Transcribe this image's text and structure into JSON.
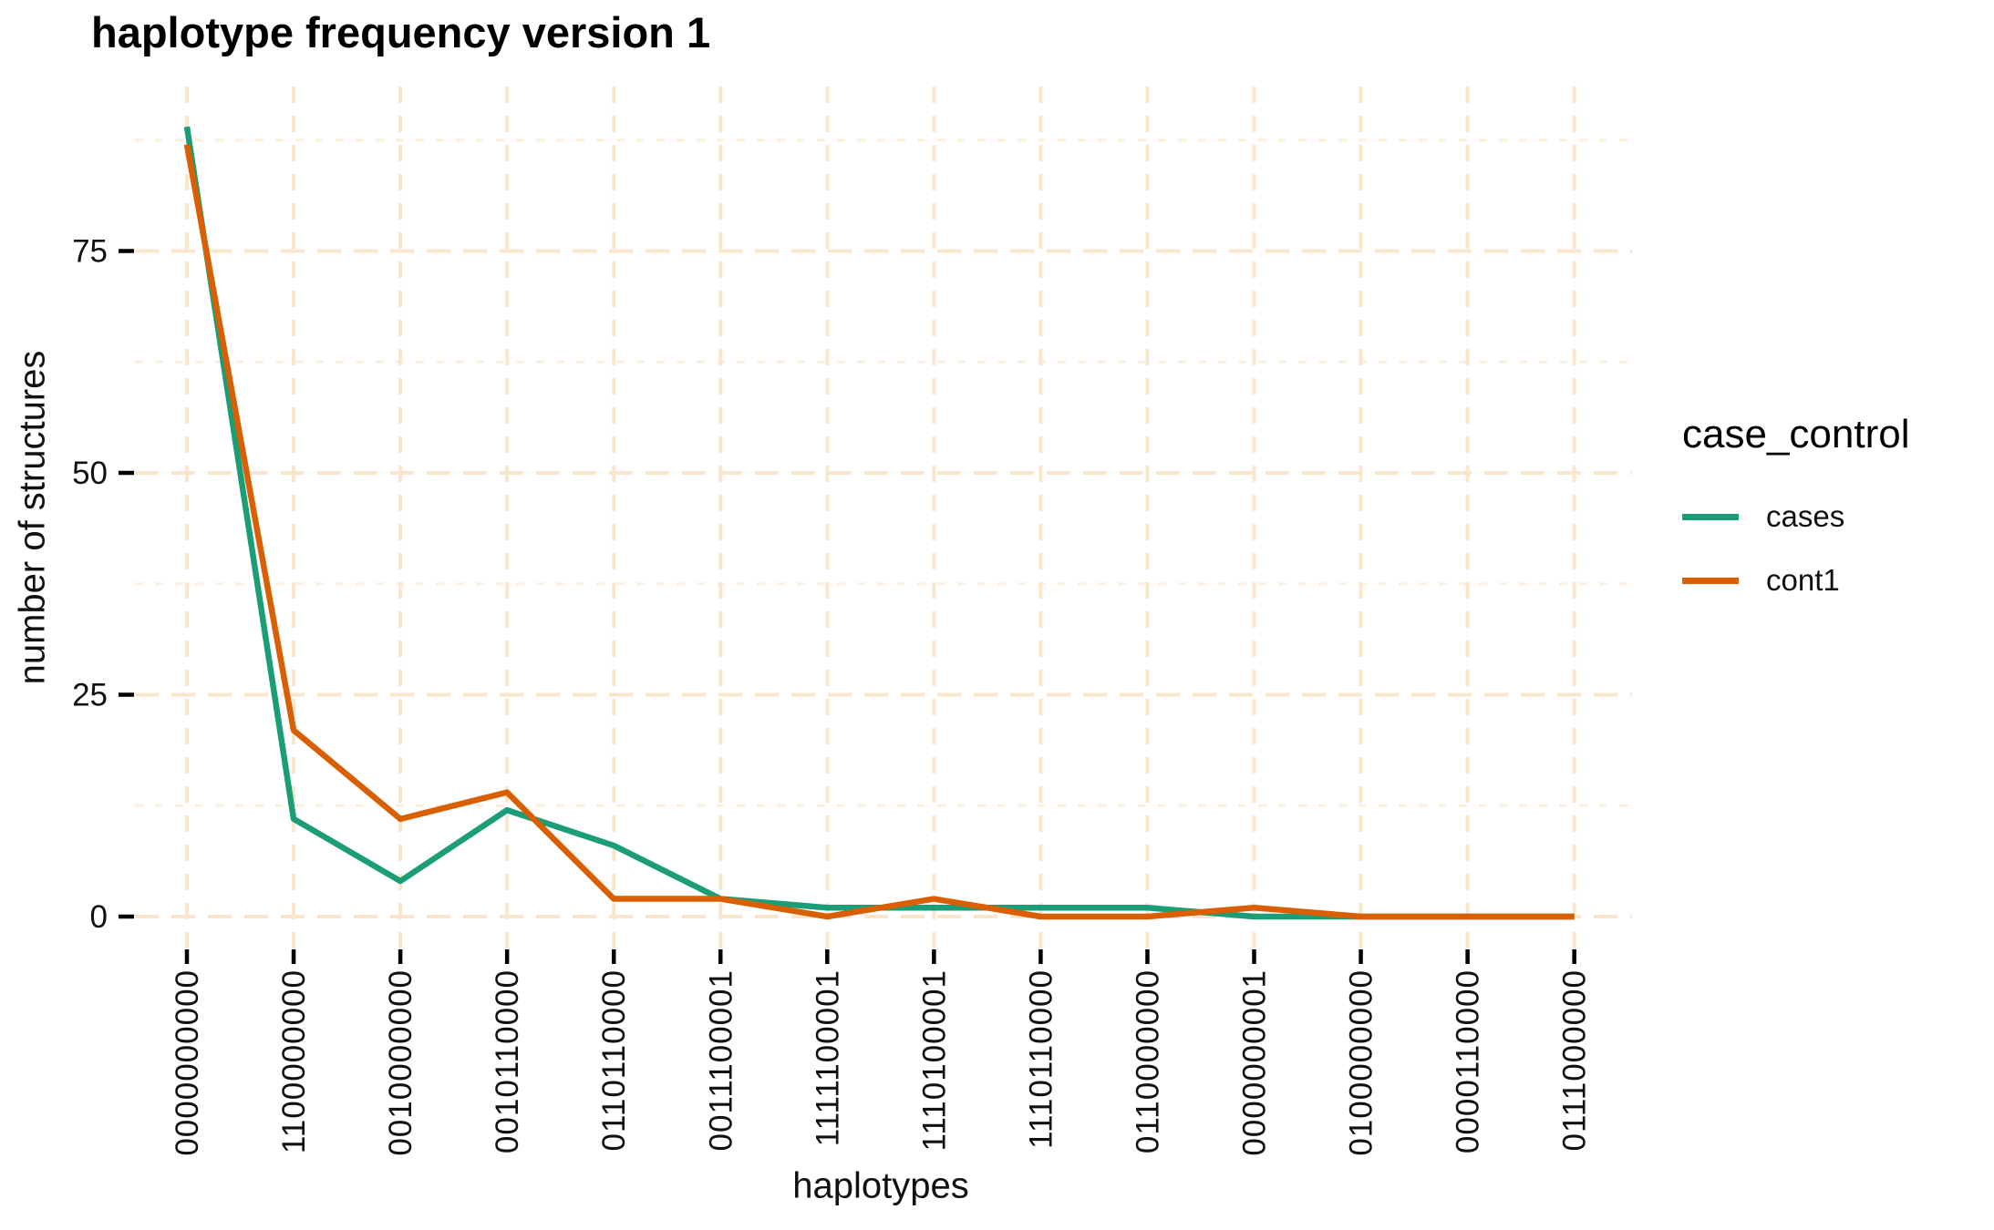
{
  "figure": {
    "title": "haplotype frequency version 1"
  },
  "chart_data": {
    "type": "line",
    "title": "haplotype frequency version 1",
    "xlabel": "haplotypes",
    "ylabel": "number of structures",
    "categories": [
      "0000000000",
      "1100000000",
      "0010000000",
      "0010110000",
      "0110110000",
      "0011100001",
      "1111100001",
      "1110100001",
      "1110110000",
      "0110000000",
      "0000000001",
      "0100000000",
      "0000110000",
      "0111000000"
    ],
    "series": [
      {
        "name": "cases",
        "color": "#1B9E77",
        "values": [
          89,
          11,
          4,
          12,
          8,
          2,
          1,
          1,
          1,
          1,
          0,
          0,
          0,
          0
        ]
      },
      {
        "name": "cont1",
        "color": "#D95F02",
        "values": [
          87,
          21,
          11,
          14,
          2,
          2,
          0,
          2,
          0,
          0,
          1,
          0,
          0,
          0
        ]
      }
    ],
    "yticks": [
      0,
      25,
      50,
      75
    ],
    "minor_gridlines": [
      12.5,
      37.5,
      62.5,
      87.5
    ],
    "ylim": [
      -3.7,
      93.5
    ],
    "grid": "dashed",
    "legend": {
      "title": "case_control",
      "position": "right"
    },
    "colors": {
      "grid_major": "#FAE6CC",
      "grid_minor": "#FCEFDF",
      "tick_mark": "#000000",
      "tick_text": "#111111",
      "background": "#FFFFFF"
    }
  }
}
